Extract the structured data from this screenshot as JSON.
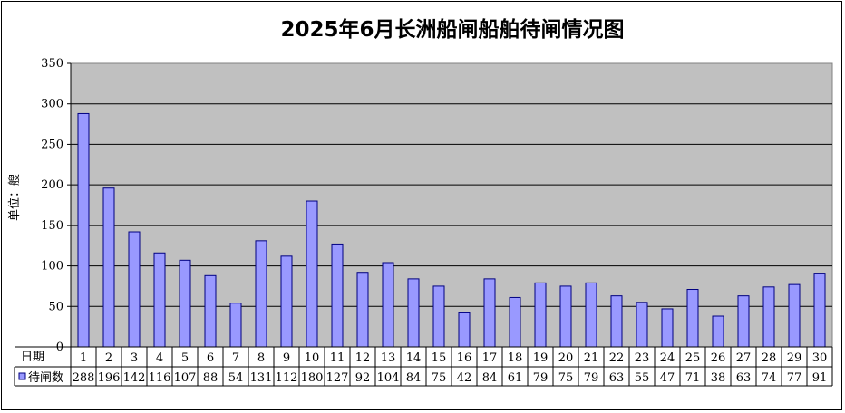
{
  "chart_data": {
    "type": "bar",
    "title": "2025年6月长洲船闸船舶待闸情况图",
    "ylabel": "单位：艘",
    "xlabel": "日期",
    "ylim": [
      0,
      350
    ],
    "yticks": [
      0,
      50,
      100,
      150,
      200,
      250,
      300,
      350
    ],
    "grid": true,
    "categories": [
      "1",
      "2",
      "3",
      "4",
      "5",
      "6",
      "7",
      "8",
      "9",
      "10",
      "11",
      "12",
      "13",
      "14",
      "15",
      "16",
      "17",
      "18",
      "19",
      "20",
      "21",
      "22",
      "23",
      "24",
      "25",
      "26",
      "27",
      "28",
      "29",
      "30"
    ],
    "series": [
      {
        "name": "待闸数",
        "color": "#9999ff",
        "values": [
          288,
          196,
          142,
          116,
          107,
          88,
          54,
          131,
          112,
          180,
          127,
          92,
          104,
          84,
          75,
          42,
          84,
          61,
          79,
          75,
          79,
          63,
          55,
          47,
          71,
          38,
          63,
          74,
          77,
          91
        ]
      }
    ]
  },
  "colors": {
    "plot_background": "#c0c0c0",
    "bar_fill": "#9999ff",
    "bar_stroke": "#000080",
    "gridline": "#000000"
  }
}
